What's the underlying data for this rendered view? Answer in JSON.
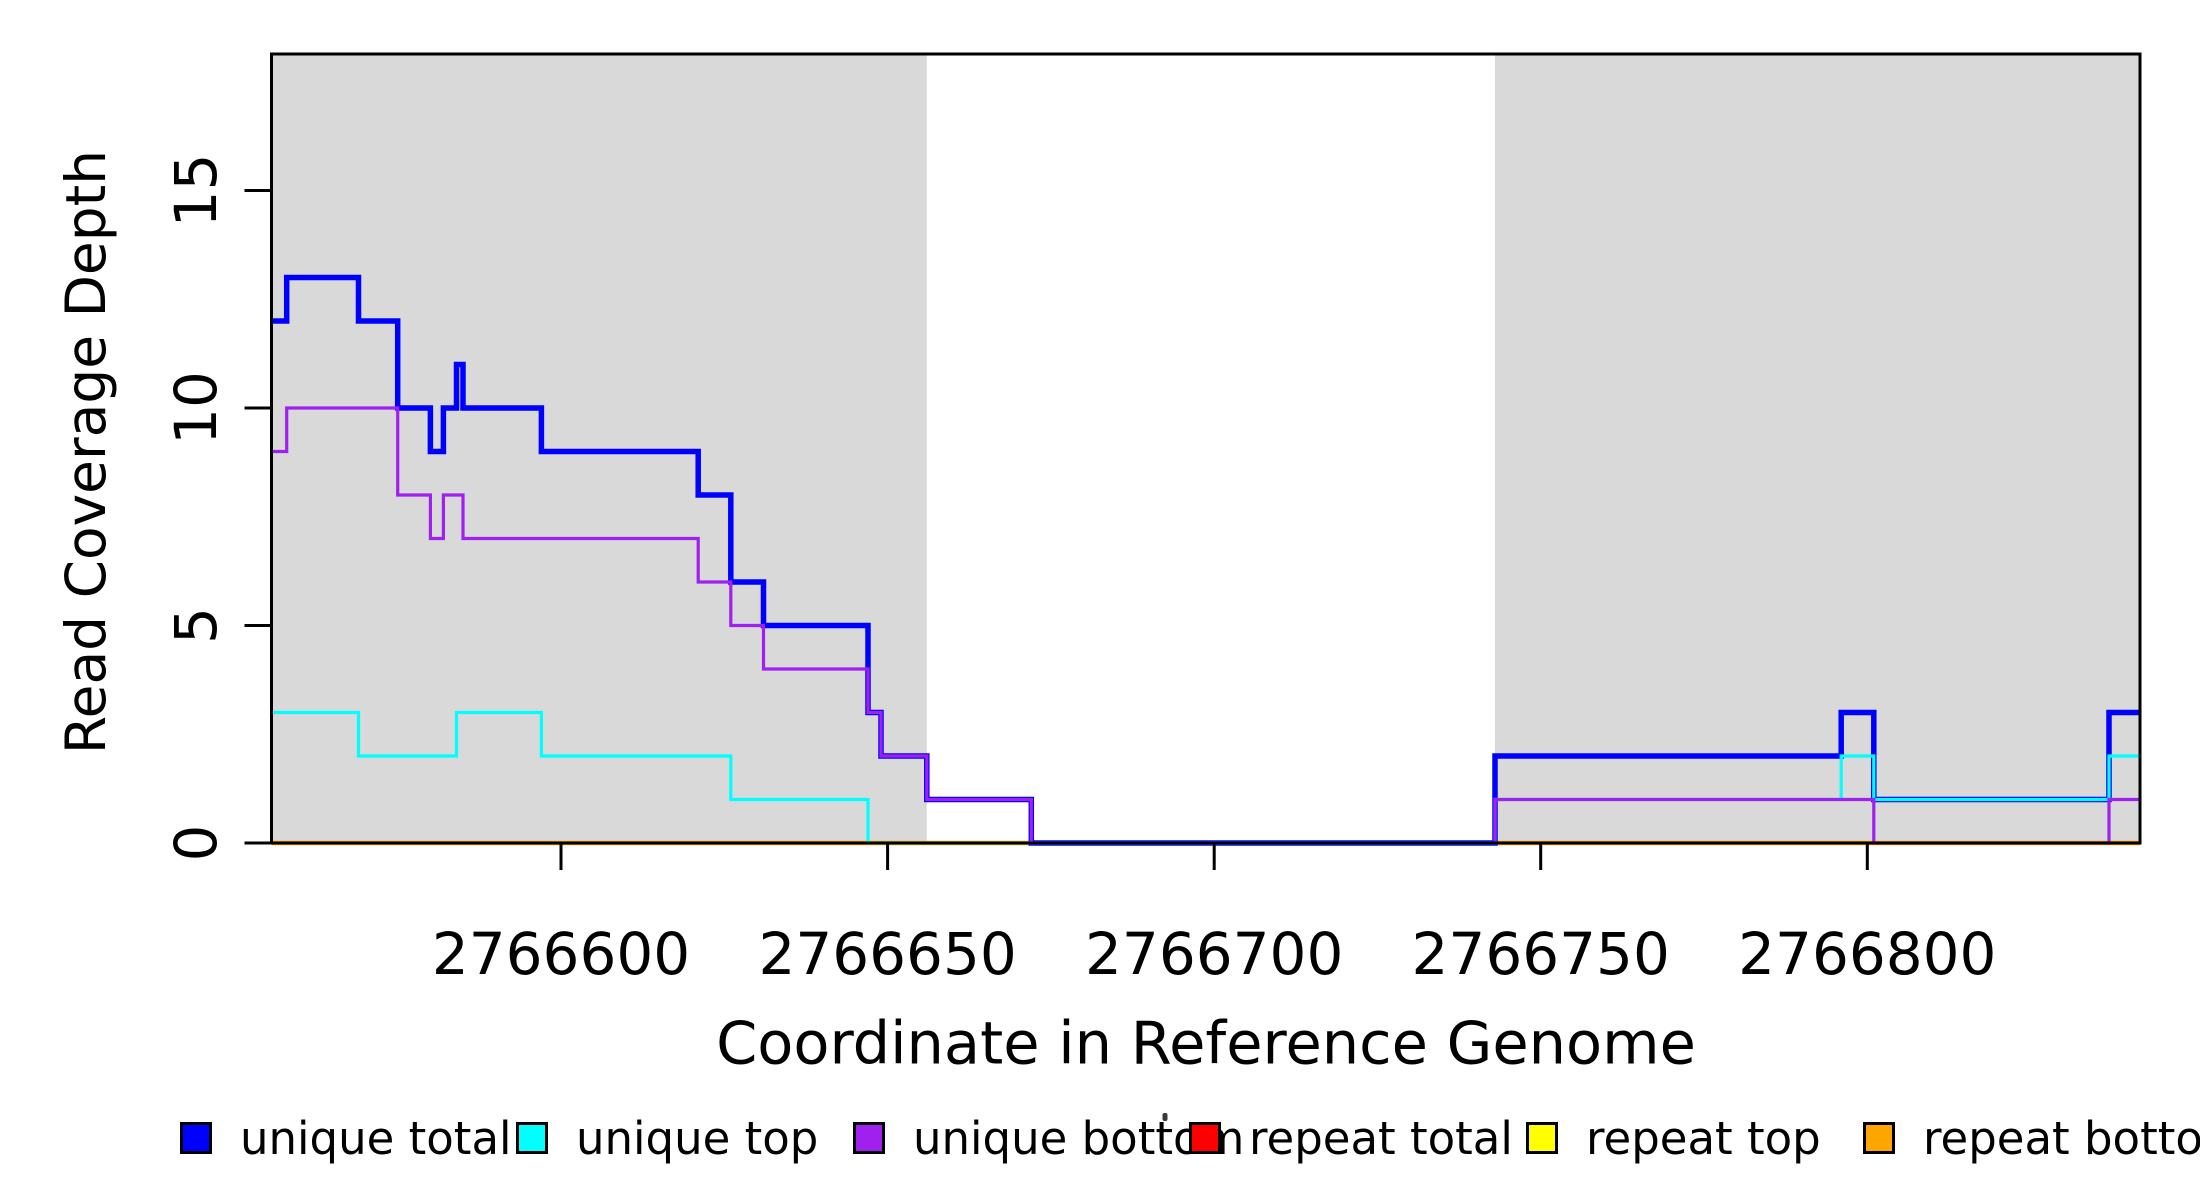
{
  "figure": {
    "background": "#ffffff",
    "axis_color": "#000000",
    "x_title": "Coordinate in Reference Genome",
    "y_title": "Read Coverage Depth"
  },
  "chart_data": {
    "type": "line",
    "subtype": "step",
    "title": "",
    "xlabel": "Coordinate in Reference Genome",
    "ylabel": "Read Coverage Depth",
    "xlim": [
      2766555.7,
      2766841.8
    ],
    "ylim": [
      0,
      18.1
    ],
    "x_ticks": [
      2766600,
      2766650,
      2766700,
      2766750,
      2766800
    ],
    "y_ticks": [
      0,
      5,
      10,
      15
    ],
    "grid": false,
    "shade_color": "#D9D9D9",
    "shaded_regions": [
      [
        2766555.7,
        2766656
      ],
      [
        2766743,
        2766841.8
      ]
    ],
    "draw_order": [
      "repeat total",
      "repeat top",
      "repeat bottom",
      "unique total",
      "unique top",
      "unique bottom"
    ],
    "series": [
      {
        "name": "unique total",
        "color": "#0000FF",
        "lwd": 5.5,
        "segments": [
          [
            2766555.7,
            2766558,
            12
          ],
          [
            2766558,
            2766569,
            13
          ],
          [
            2766569,
            2766575,
            12
          ],
          [
            2766575,
            2766580,
            10
          ],
          [
            2766580,
            2766582,
            9
          ],
          [
            2766582,
            2766584,
            10
          ],
          [
            2766584,
            2766585,
            11
          ],
          [
            2766585,
            2766597,
            10
          ],
          [
            2766597,
            2766621,
            9
          ],
          [
            2766621,
            2766626,
            8
          ],
          [
            2766626,
            2766631,
            6
          ],
          [
            2766631,
            2766647,
            5
          ],
          [
            2766647,
            2766649,
            3
          ],
          [
            2766649,
            2766656,
            2
          ],
          [
            2766656,
            2766672,
            1
          ],
          [
            2766672,
            2766743,
            0
          ],
          [
            2766743,
            2766796,
            2
          ],
          [
            2766796,
            2766801,
            3
          ],
          [
            2766801,
            2766837,
            1
          ],
          [
            2766837,
            2766841.8,
            3
          ]
        ]
      },
      {
        "name": "unique top",
        "color": "#00FFFF",
        "lwd": 3.2,
        "segments": [
          [
            2766555.7,
            2766569,
            3
          ],
          [
            2766569,
            2766584,
            2
          ],
          [
            2766584,
            2766597,
            3
          ],
          [
            2766597,
            2766626,
            2
          ],
          [
            2766626,
            2766647,
            1
          ],
          [
            2766647,
            2766743,
            0
          ],
          [
            2766743,
            2766796,
            1
          ],
          [
            2766796,
            2766801,
            2
          ],
          [
            2766801,
            2766837,
            1
          ],
          [
            2766837,
            2766841.8,
            2
          ]
        ]
      },
      {
        "name": "unique bottom",
        "color": "#A020F0",
        "lwd": 3.2,
        "segments": [
          [
            2766555.7,
            2766558,
            9
          ],
          [
            2766558,
            2766575,
            10
          ],
          [
            2766575,
            2766580,
            8
          ],
          [
            2766580,
            2766582,
            7
          ],
          [
            2766582,
            2766585,
            8
          ],
          [
            2766585,
            2766621,
            7
          ],
          [
            2766621,
            2766626,
            6
          ],
          [
            2766626,
            2766631,
            5
          ],
          [
            2766631,
            2766647,
            4
          ],
          [
            2766647,
            2766649,
            3
          ],
          [
            2766649,
            2766656,
            2
          ],
          [
            2766656,
            2766672,
            1
          ],
          [
            2766672,
            2766743,
            0
          ],
          [
            2766743,
            2766801,
            1
          ],
          [
            2766801,
            2766837,
            0
          ],
          [
            2766837,
            2766841.8,
            1
          ]
        ]
      },
      {
        "name": "repeat total",
        "color": "#FF0000",
        "lwd": 3.2,
        "segments": [
          [
            2766555.7,
            2766841.8,
            0
          ]
        ]
      },
      {
        "name": "repeat top",
        "color": "#FFFF00",
        "lwd": 3.2,
        "segments": [
          [
            2766555.7,
            2766841.8,
            0
          ]
        ]
      },
      {
        "name": "repeat bottom",
        "color": "#FFA500",
        "lwd": 4.5,
        "segments": [
          [
            2766555.7,
            2766841.8,
            0
          ]
        ]
      }
    ],
    "legend": {
      "position": "bottom",
      "items": [
        {
          "label": "unique total",
          "color": "#0000FF"
        },
        {
          "label": "unique top",
          "color": "#00FFFF"
        },
        {
          "label": "unique bottom",
          "color": "#A020F0"
        },
        {
          "label": "repeat total",
          "color": "#FF0000"
        },
        {
          "label": "repeat top",
          "color": "#FFFF00"
        },
        {
          "label": "repeat bottom",
          "color": "#FFA500"
        }
      ]
    }
  }
}
